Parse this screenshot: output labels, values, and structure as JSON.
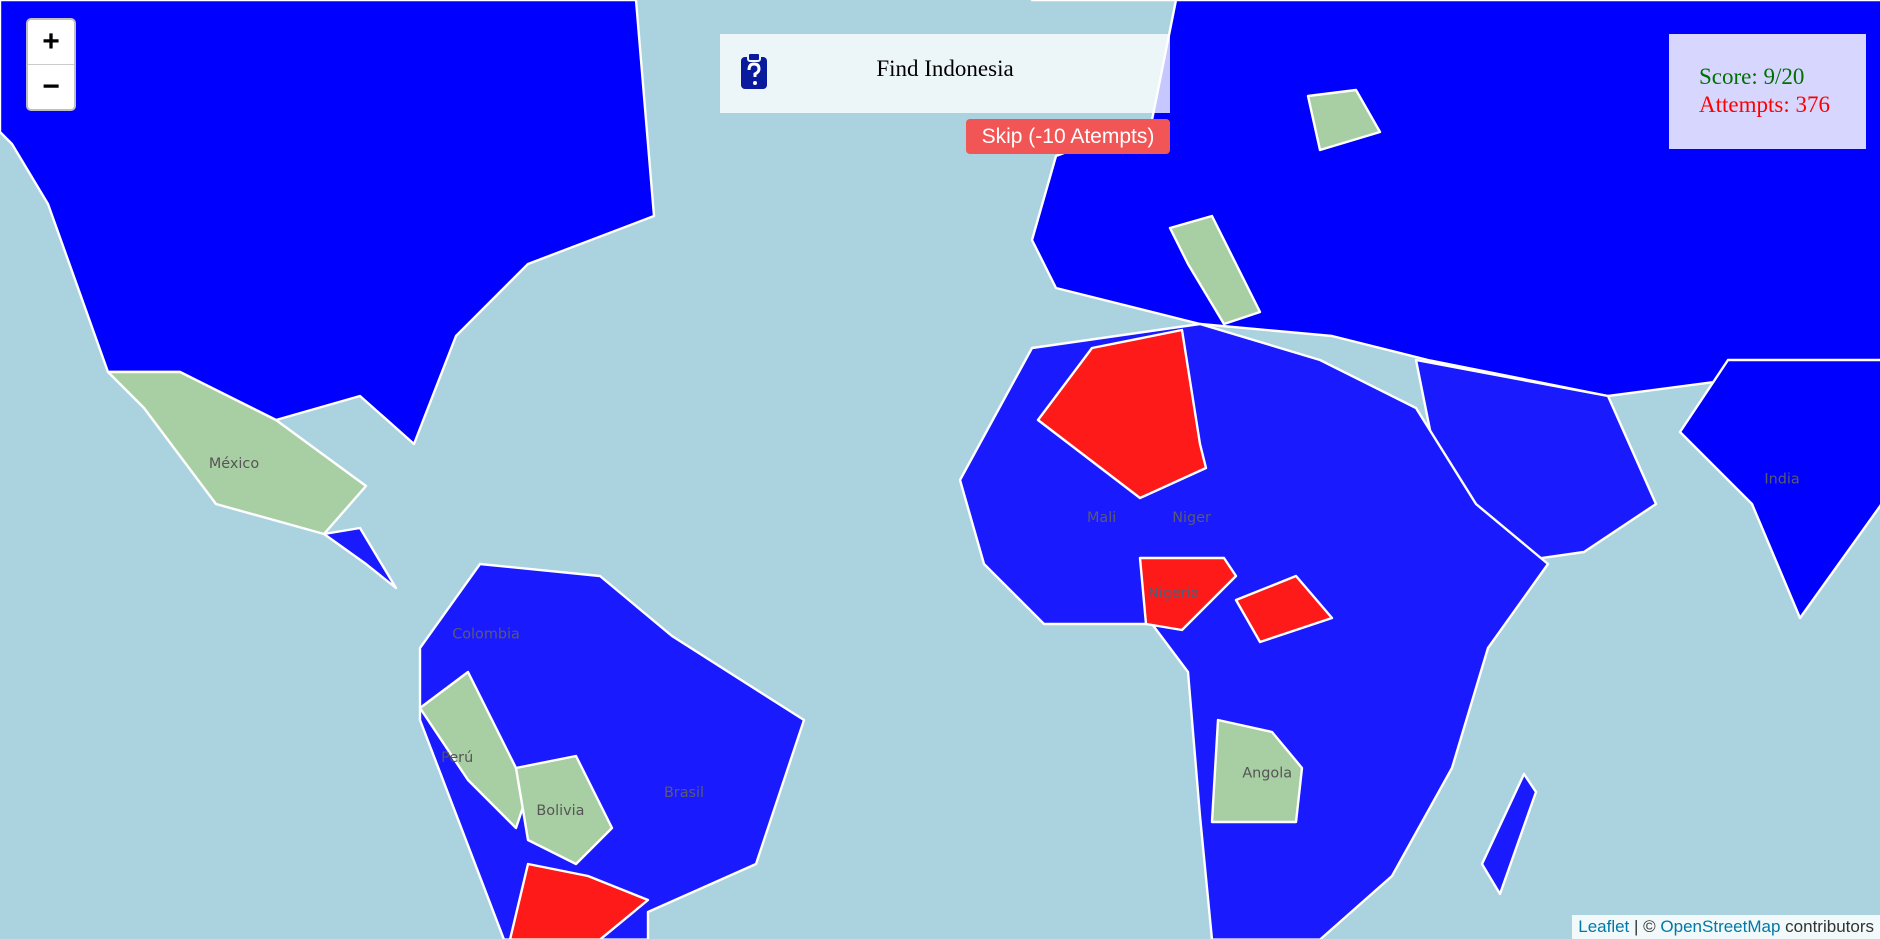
{
  "game": {
    "prompt": "Find Indonesia",
    "skip_button": "Skip (-10 Atempts)",
    "score": "Score: 9/20",
    "attempts": "Attempts: 376"
  },
  "zoom": {
    "in": "+",
    "out": "−"
  },
  "attribution": {
    "leaflet": "Leaflet",
    "separator": "| ©",
    "osm": "OpenStreetMap",
    "suffix": "contributors"
  },
  "map_labels": [
    "México",
    "Perú",
    "Bolivia",
    "Brasil",
    "Colombia",
    "Angola",
    "Nigeria",
    "India",
    "Mali",
    "Niger"
  ]
}
